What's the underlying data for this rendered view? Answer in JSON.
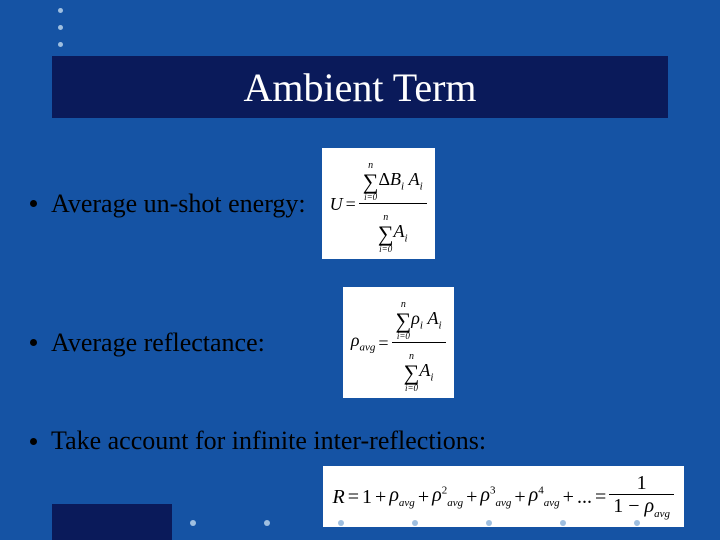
{
  "slide": {
    "background_color": "#1553a4",
    "accent_color": "#0a1a5a",
    "dot_color": "#9fbfe0",
    "title": "Ambient Term",
    "bullets": [
      {
        "label": "Average un-shot energy:"
      },
      {
        "label": "Average reflectance:"
      },
      {
        "label": "Take account for infinite inter-reflections:"
      }
    ],
    "formulas": {
      "unshot": {
        "lhs": "U",
        "sum_upper": "n",
        "sum_lower": "i=0",
        "num_term_delta": "Δ",
        "num_term_B": "B",
        "num_term_A": "A",
        "den_term_A": "A",
        "sub_i": "i"
      },
      "reflectance": {
        "lhs_rho": "ρ",
        "lhs_sub": "avg",
        "sum_upper": "n",
        "sum_lower": "i=0",
        "num_rho": "ρ",
        "num_A": "A",
        "den_A": "A",
        "sub_i": "i"
      },
      "series": {
        "lhs": "R",
        "one": "1",
        "plus": "+",
        "rho": "ρ",
        "sub_avg": "avg",
        "dots": "...",
        "eq": "=",
        "frac_num": "1",
        "frac_den_one": "1",
        "frac_den_minus": "−",
        "powers": [
          "2",
          "3",
          "4"
        ]
      }
    }
  },
  "typography": {
    "title_fontsize": 40,
    "body_fontsize": 26,
    "formula_fontsize": 18
  }
}
